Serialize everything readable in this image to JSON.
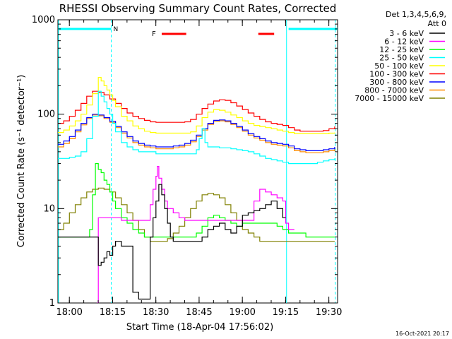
{
  "chart_data": {
    "type": "line",
    "title": "RHESSI Observing Summary Count Rates, Corrected",
    "xlabel": "Start Time (18-Apr-04 17:56:02)",
    "ylabel": "Corrected Count Rate (s⁻¹ detector⁻¹)",
    "yscale": "log",
    "ylim": [
      1,
      1000
    ],
    "xlim_minutes": [
      0,
      97
    ],
    "x_units": "minutes after 17:56:02",
    "x_ticks": [
      {
        "label": "18:00",
        "value": 3.97
      },
      {
        "label": "18:15",
        "value": 18.97
      },
      {
        "label": "18:30",
        "value": 33.97
      },
      {
        "label": "18:45",
        "value": 48.97
      },
      {
        "label": "19:00",
        "value": 63.97
      },
      {
        "label": "19:15",
        "value": 78.97
      },
      {
        "label": "19:30",
        "value": 93.97
      }
    ],
    "y_ticks": [
      {
        "label": "1",
        "value": 1
      },
      {
        "label": "10",
        "value": 10
      },
      {
        "label": "100",
        "value": 100
      },
      {
        "label": "1000",
        "value": 1000
      }
    ],
    "legend_header": [
      "Det 1,3,4,5,6,9,",
      "Att 0"
    ],
    "legend_position": "right",
    "night_markers": [
      {
        "label": "N",
        "start": 0,
        "end": 18.5,
        "color": "#00ffff"
      },
      {
        "label": "",
        "start": 80.0,
        "end": 97.0,
        "color": "#00ffff"
      }
    ],
    "night_boundaries": [
      0.2,
      18.5,
      79.3,
      96.2
    ],
    "flare_markers": [
      {
        "label": "F",
        "start": 36.0,
        "end": 44.5,
        "color": "#ff0000"
      },
      {
        "label": "",
        "start": 69.5,
        "end": 75.0,
        "color": "#ff0000"
      }
    ],
    "series": [
      {
        "name": "3 - 6 keV",
        "color": "#000000",
        "x": [
          0,
          2,
          4,
          6,
          8,
          10,
          12,
          14,
          15,
          16,
          17,
          18,
          19,
          20,
          22,
          24,
          26,
          28,
          30,
          32,
          33,
          34,
          35,
          36,
          37,
          38,
          39,
          40,
          42,
          44,
          46,
          48,
          50,
          52,
          54,
          56,
          58,
          60,
          62,
          64,
          66,
          68,
          70,
          72,
          74,
          76,
          78,
          79
        ],
        "y": [
          5,
          5,
          5,
          5,
          5,
          5,
          5,
          2.5,
          2.7,
          3.0,
          3.5,
          3.2,
          4.0,
          4.5,
          4.0,
          4.0,
          1.3,
          1.1,
          1.1,
          5.0,
          8.0,
          12.0,
          18.0,
          14.0,
          10.0,
          7.0,
          5.0,
          4.5,
          4.5,
          4.5,
          4.5,
          4.5,
          5.0,
          6.0,
          6.5,
          7.0,
          6.0,
          5.5,
          6.5,
          8.5,
          9.0,
          9.5,
          10.0,
          11.0,
          12.0,
          10.0,
          8.0,
          8.0
        ]
      },
      {
        "name": "6 - 12 keV",
        "color": "#ff00ff",
        "x": [
          13.5,
          14,
          16,
          18,
          20,
          22,
          24,
          26,
          28,
          30,
          32,
          33,
          34,
          34.5,
          35,
          36,
          37,
          38,
          40,
          42,
          44,
          46,
          48,
          50,
          52,
          54,
          56,
          58,
          60,
          62,
          64,
          66,
          68,
          70,
          72,
          74,
          76,
          78,
          79,
          80,
          82
        ],
        "y": [
          1,
          8,
          8,
          8,
          8,
          7.5,
          7.5,
          7.5,
          7.5,
          7.5,
          11,
          16,
          22,
          28,
          21,
          16,
          12,
          10,
          9,
          8,
          7.5,
          7.5,
          7.5,
          7.5,
          7.5,
          7.5,
          7.5,
          7.5,
          7.5,
          7.5,
          7.5,
          7.5,
          12,
          16,
          15,
          14,
          13,
          12,
          7,
          6,
          6
        ]
      },
      {
        "name": "12 - 25 keV",
        "color": "#00ff00",
        "x": [
          0,
          2,
          4,
          6,
          8,
          10,
          11,
          12,
          13,
          14,
          15,
          16,
          17,
          18,
          19,
          20,
          22,
          24,
          26,
          28,
          30,
          32,
          34,
          36,
          38,
          40,
          42,
          44,
          46,
          48,
          50,
          52,
          54,
          56,
          58,
          60,
          62,
          64,
          66,
          68,
          70,
          72,
          74,
          76,
          78,
          80,
          82,
          84,
          86,
          88,
          90,
          92,
          94,
          96
        ],
        "y": [
          5,
          5,
          5,
          5,
          5,
          5,
          6,
          14,
          30,
          26,
          24,
          20,
          18,
          15,
          12,
          10,
          8,
          7,
          6,
          5.5,
          5,
          5,
          5,
          5,
          5,
          5,
          5,
          5,
          5,
          5.5,
          6.5,
          8,
          8.5,
          8,
          7.5,
          7,
          6.5,
          7,
          7,
          7,
          7,
          7,
          7,
          6.5,
          6,
          5.5,
          5.5,
          5.5,
          5,
          5,
          5,
          5,
          5,
          5
        ]
      },
      {
        "name": "25 - 50 keV",
        "color": "#00ffff",
        "x": [
          0,
          2,
          4,
          6,
          8,
          10,
          12,
          14,
          15,
          16,
          17,
          18,
          19,
          20,
          22,
          24,
          26,
          28,
          30,
          32,
          34,
          36,
          38,
          40,
          42,
          44,
          46,
          48,
          49,
          50,
          51,
          52,
          54,
          56,
          58,
          60,
          62,
          64,
          66,
          68,
          70,
          72,
          74,
          76,
          78,
          80,
          82,
          84,
          86,
          88,
          90,
          92,
          94,
          96
        ],
        "y": [
          34,
          34,
          35,
          36,
          40,
          55,
          95,
          175,
          155,
          135,
          115,
          100,
          80,
          65,
          50,
          45,
          42,
          40,
          40,
          40,
          38,
          38,
          38,
          38,
          38,
          38,
          38,
          42,
          55,
          70,
          50,
          45,
          45,
          44,
          44,
          43,
          42,
          41,
          40,
          38,
          36,
          34,
          33,
          32,
          31,
          30,
          30,
          30,
          30,
          30,
          31,
          32,
          33,
          34
        ]
      },
      {
        "name": "50 - 100 keV",
        "color": "#ffff00",
        "x": [
          0,
          2,
          4,
          6,
          8,
          10,
          12,
          14,
          15,
          16,
          17,
          18,
          19,
          20,
          22,
          24,
          26,
          28,
          30,
          32,
          34,
          36,
          38,
          40,
          42,
          44,
          46,
          48,
          50,
          52,
          54,
          56,
          58,
          60,
          62,
          64,
          66,
          68,
          70,
          72,
          74,
          76,
          78,
          80,
          82,
          84,
          86,
          88,
          90,
          92,
          94,
          96
        ],
        "y": [
          64,
          68,
          75,
          85,
          100,
          125,
          165,
          245,
          225,
          200,
          180,
          160,
          140,
          120,
          95,
          85,
          75,
          70,
          66,
          64,
          63,
          63,
          63,
          63,
          63,
          63,
          65,
          75,
          92,
          105,
          112,
          110,
          105,
          98,
          92,
          85,
          80,
          76,
          74,
          72,
          70,
          68,
          66,
          64,
          62,
          62,
          62,
          62,
          62,
          62,
          63,
          64
        ]
      },
      {
        "name": "100 - 300 keV",
        "color": "#ff0000",
        "x": [
          0,
          2,
          4,
          6,
          8,
          10,
          12,
          14,
          16,
          18,
          20,
          22,
          24,
          26,
          28,
          30,
          32,
          34,
          36,
          38,
          40,
          42,
          44,
          46,
          48,
          50,
          52,
          54,
          56,
          58,
          60,
          62,
          64,
          66,
          68,
          70,
          72,
          74,
          76,
          78,
          80,
          82,
          84,
          86,
          88,
          90,
          92,
          94,
          96
        ],
        "y": [
          80,
          85,
          95,
          110,
          130,
          155,
          175,
          170,
          160,
          145,
          130,
          115,
          103,
          95,
          90,
          86,
          83,
          82,
          82,
          82,
          82,
          82,
          83,
          88,
          100,
          115,
          128,
          138,
          142,
          140,
          132,
          122,
          112,
          103,
          95,
          88,
          83,
          80,
          78,
          76,
          72,
          68,
          66,
          66,
          66,
          66,
          67,
          70,
          74
        ]
      },
      {
        "name": "300 - 800 keV",
        "color": "#0000ff",
        "x": [
          0,
          2,
          4,
          6,
          8,
          10,
          12,
          14,
          16,
          18,
          20,
          22,
          24,
          26,
          28,
          30,
          32,
          34,
          36,
          38,
          40,
          42,
          44,
          46,
          48,
          50,
          52,
          54,
          56,
          58,
          60,
          62,
          64,
          66,
          68,
          70,
          72,
          74,
          76,
          78,
          80,
          82,
          84,
          86,
          88,
          90,
          92,
          94,
          96
        ],
        "y": [
          48,
          52,
          58,
          68,
          80,
          92,
          100,
          98,
          92,
          84,
          74,
          65,
          58,
          52,
          49,
          47,
          46,
          45,
          45,
          45,
          46,
          47,
          49,
          53,
          60,
          70,
          80,
          86,
          87,
          85,
          80,
          74,
          68,
          62,
          58,
          55,
          52,
          50,
          49,
          48,
          46,
          43,
          42,
          41,
          41,
          41,
          42,
          43,
          45
        ]
      },
      {
        "name": "800 - 7000 keV",
        "color": "#ff8c00",
        "x": [
          0,
          2,
          4,
          6,
          8,
          10,
          12,
          14,
          16,
          18,
          20,
          22,
          24,
          26,
          28,
          30,
          32,
          34,
          36,
          38,
          40,
          42,
          44,
          46,
          48,
          50,
          52,
          54,
          56,
          58,
          60,
          62,
          64,
          66,
          68,
          70,
          72,
          74,
          76,
          78,
          80,
          82,
          84,
          86,
          88,
          90,
          92,
          94,
          96
        ],
        "y": [
          45,
          49,
          55,
          65,
          77,
          90,
          98,
          96,
          90,
          82,
          72,
          63,
          56,
          50,
          47,
          45,
          44,
          43,
          43,
          43,
          44,
          45,
          47,
          51,
          58,
          68,
          78,
          84,
          85,
          83,
          78,
          72,
          66,
          60,
          56,
          53,
          50,
          48,
          47,
          46,
          44,
          41,
          40,
          39,
          39,
          39,
          40,
          41,
          43
        ]
      },
      {
        "name": "7000 - 15000 keV",
        "color": "#808000",
        "x": [
          0,
          2,
          4,
          6,
          8,
          10,
          12,
          14,
          16,
          18,
          20,
          22,
          24,
          26,
          28,
          30,
          32,
          34,
          36,
          38,
          40,
          42,
          44,
          46,
          48,
          50,
          52,
          54,
          56,
          58,
          60,
          62,
          64,
          66,
          68,
          70,
          72,
          74,
          76,
          78,
          80,
          82,
          84,
          86,
          88,
          90,
          92,
          94,
          96
        ],
        "y": [
          6,
          7,
          9,
          11,
          13,
          15,
          16,
          16.5,
          16,
          15,
          13,
          11,
          9,
          7.5,
          6,
          5,
          4.5,
          4.5,
          4.5,
          4.8,
          5.5,
          6.5,
          8,
          10,
          12,
          14,
          14.5,
          14,
          13,
          11,
          9,
          7.5,
          6,
          5.5,
          5,
          4.5,
          4.5,
          4.5,
          4.5,
          4.5,
          4.5,
          4.5,
          4.5,
          4.5,
          4.5,
          4.5,
          4.5,
          4.5,
          4.5
        ]
      }
    ]
  },
  "footer": {
    "timestamp": "16-Oct-2021 20:17"
  }
}
